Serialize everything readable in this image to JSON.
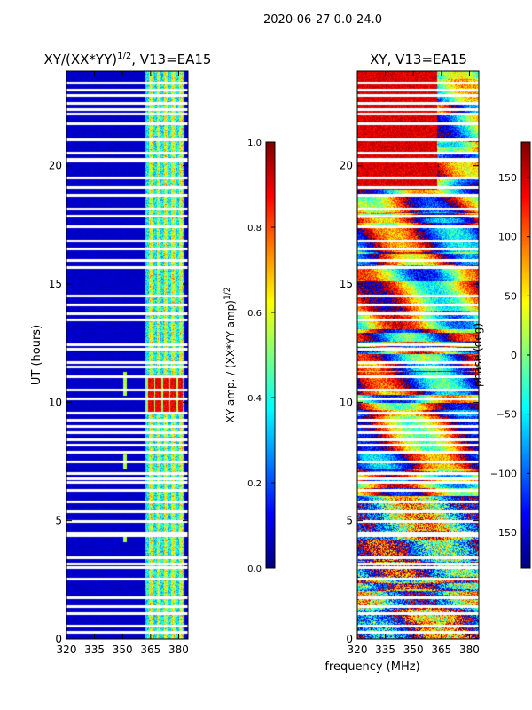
{
  "figure": {
    "suptitle": "2020-06-27 0.0-24.0",
    "shared_xlabel": "frequency (MHz)"
  },
  "chart_data": [
    {
      "type": "heatmap",
      "title": "XY/(XX*YY)^1/2, V13=EA15",
      "title_main": "XY/(XX*YY)",
      "title_exp": "1/2",
      "title_tail": ", V13=EA15",
      "xlabel": "",
      "ylabel": "UT (hours)",
      "xlim": [
        320,
        385
      ],
      "ylim": [
        0,
        24
      ],
      "xticks": [
        320,
        335,
        350,
        365,
        380
      ],
      "yticks": [
        0,
        5,
        10,
        15,
        20
      ],
      "grid": false,
      "colorbar": {
        "label": "XY amp. / (XX*YY amp)^1/2",
        "label_main": "XY amp. / (XX*YY amp)",
        "label_exp": "1/2",
        "range": [
          0.0,
          1.0
        ],
        "ticks": [
          "0.0",
          "0.2",
          "0.4",
          "0.6",
          "0.8",
          "1.0"
        ],
        "colormap": "jet"
      },
      "flagged_hours": [
        0.3,
        0.55,
        1.1,
        1.4,
        1.75,
        2.55,
        3.05,
        3.2,
        3.45,
        4.4,
        4.5,
        5.0,
        5.4,
        5.8,
        6.3,
        6.65,
        6.8,
        7.0,
        7.5,
        7.9,
        8.2,
        8.45,
        8.75,
        9.0,
        9.25,
        9.55,
        10.15,
        10.55,
        11.1,
        11.5,
        11.7,
        12.25,
        12.45,
        13.5,
        13.75,
        14.15,
        14.5,
        15.7,
        16.0,
        16.5,
        16.85,
        17.45,
        17.9,
        18.2,
        18.75,
        19.1,
        19.5,
        20.2,
        20.3,
        20.55,
        21.1,
        21.8,
        22.2,
        22.4,
        22.65,
        23.0,
        23.2,
        23.5
      ],
      "bright_patch": {
        "hours": [
          9.5,
          11.2
        ],
        "freq_mhz": [
          362,
          382
        ],
        "amp": 0.95
      }
    },
    {
      "type": "heatmap",
      "title": "XY, V13=EA15",
      "xlabel": "",
      "ylabel": "",
      "xlim": [
        320,
        385
      ],
      "ylim": [
        0,
        24
      ],
      "xticks": [
        320,
        335,
        350,
        365,
        380
      ],
      "yticks": [
        0,
        5,
        10,
        15,
        20
      ],
      "grid": false,
      "colorbar": {
        "label": "phase (deg)",
        "range": [
          -180,
          180
        ],
        "ticks": [
          "150",
          "100",
          "50",
          "0",
          "−50",
          "−100",
          "−150"
        ],
        "tick_values": [
          150,
          100,
          50,
          0,
          -50,
          -100,
          -150
        ],
        "colormap": "jet"
      },
      "flagged_hours": [
        0.3,
        0.55,
        1.1,
        1.4,
        1.75,
        2.55,
        3.05,
        3.2,
        3.45,
        4.4,
        4.5,
        5.0,
        5.4,
        5.8,
        6.3,
        6.65,
        6.8,
        7.0,
        7.5,
        7.9,
        8.2,
        8.45,
        8.75,
        9.0,
        9.25,
        9.55,
        10.15,
        10.55,
        11.1,
        11.5,
        11.7,
        12.25,
        12.45,
        13.5,
        13.75,
        14.15,
        14.5,
        15.7,
        16.0,
        16.5,
        16.85,
        17.45,
        17.9,
        18.2,
        18.75,
        19.1,
        19.5,
        20.2,
        20.3,
        20.55,
        21.1,
        21.8,
        22.2,
        22.4,
        22.65,
        23.0,
        23.2,
        23.5
      ]
    }
  ]
}
